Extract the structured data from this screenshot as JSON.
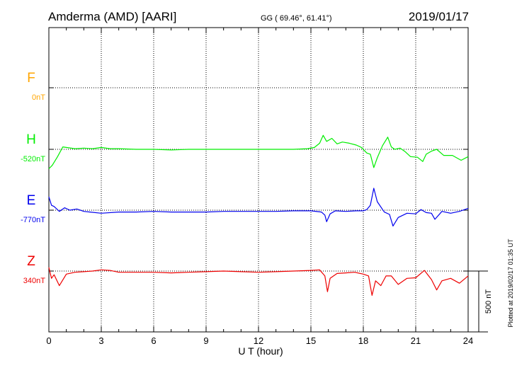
{
  "header": {
    "station": "Amderma (AMD)  [AARI]",
    "coords": "GG ( 69.46°,  61.41°)",
    "date": "2019/01/17"
  },
  "footer": {
    "plotted": "Plotted at 2019/02/17 01:35 UT"
  },
  "chart_data": {
    "type": "line",
    "title": "Amderma (AMD)  [AARI]",
    "xlabel": "U T (hour)",
    "ylabel": "",
    "xlim": [
      0,
      24
    ],
    "x_ticks": [
      0,
      3,
      6,
      9,
      12,
      15,
      18,
      21,
      24
    ],
    "x_tick_labels": [
      "0",
      "3",
      "6",
      "9",
      "12",
      "15",
      "18",
      "21",
      "24"
    ],
    "scale_bar_label": "500 nT",
    "scale_bar_nT": 500,
    "grid": true,
    "series": [
      {
        "name": "F",
        "baseline_label": "0nT",
        "color": "#ffa500",
        "x": [],
        "y": []
      },
      {
        "name": "H",
        "baseline_label": "-520nT",
        "color": "#00ee00",
        "x": [
          0,
          0.2,
          0.5,
          0.8,
          1,
          1.5,
          2,
          2.5,
          3,
          3.5,
          4,
          5,
          6,
          7,
          8,
          9,
          10,
          11,
          12,
          13,
          14,
          14.8,
          15.2,
          15.5,
          15.7,
          15.9,
          16.2,
          16.5,
          16.8,
          17.2,
          17.6,
          17.9,
          18.2,
          18.4,
          18.6,
          18.8,
          19.1,
          19.4,
          19.6,
          19.8,
          20.1,
          20.4,
          20.7,
          21.1,
          21.4,
          21.6,
          21.9,
          22.2,
          22.6,
          23.1,
          23.6,
          24
        ],
        "y": [
          -160,
          -130,
          -60,
          20,
          15,
          5,
          10,
          5,
          15,
          5,
          5,
          0,
          0,
          -5,
          0,
          0,
          0,
          0,
          0,
          0,
          0,
          5,
          15,
          50,
          115,
          65,
          90,
          45,
          60,
          50,
          35,
          15,
          -30,
          -40,
          -150,
          -70,
          30,
          100,
          20,
          0,
          10,
          -20,
          -60,
          -65,
          -100,
          -40,
          -15,
          0,
          -50,
          -50,
          -90,
          -60
        ]
      },
      {
        "name": "E",
        "baseline_label": "-770nT",
        "color": "#0000ee",
        "x": [
          0,
          0.15,
          0.3,
          0.6,
          0.9,
          1.2,
          1.6,
          2,
          3,
          4,
          5,
          6,
          7,
          8,
          9,
          10,
          11,
          12,
          13,
          14,
          15,
          15.6,
          15.8,
          15.9,
          16.1,
          16.4,
          17,
          17.6,
          18,
          18.2,
          18.4,
          18.6,
          18.8,
          19.2,
          19.5,
          19.7,
          20,
          20.5,
          21,
          21.3,
          21.6,
          21.9,
          22.1,
          22.5,
          23,
          23.5,
          24
        ],
        "y": [
          110,
          40,
          30,
          -10,
          20,
          0,
          10,
          -10,
          -25,
          -15,
          -15,
          -10,
          -15,
          -15,
          -15,
          -10,
          -10,
          -10,
          -10,
          -5,
          -5,
          -15,
          -40,
          -95,
          -30,
          -5,
          -10,
          -5,
          -5,
          5,
          40,
          180,
          70,
          -15,
          -35,
          -130,
          -60,
          -25,
          -30,
          5,
          -20,
          -25,
          -75,
          -10,
          -25,
          -10,
          15
        ]
      },
      {
        "name": "Z",
        "baseline_label": "340nT",
        "color": "#ee0000",
        "x": [
          0,
          0.15,
          0.3,
          0.6,
          1,
          1.5,
          2,
          2.5,
          3,
          3.5,
          4,
          5,
          6,
          7,
          8,
          9,
          10,
          11,
          12,
          13,
          14,
          15,
          15.5,
          15.8,
          15.95,
          16.1,
          16.5,
          17,
          17.5,
          18,
          18.3,
          18.5,
          18.7,
          19,
          19.3,
          19.6,
          20,
          20.5,
          21,
          21.5,
          21.9,
          22.2,
          22.5,
          23,
          23.5,
          24
        ],
        "y": [
          30,
          -60,
          -30,
          -120,
          -25,
          -10,
          -5,
          0,
          10,
          5,
          -10,
          -10,
          -10,
          -15,
          -10,
          -5,
          0,
          -5,
          -10,
          -5,
          0,
          5,
          10,
          -40,
          -170,
          -60,
          -20,
          -15,
          -10,
          -25,
          -40,
          -200,
          -80,
          -120,
          -40,
          -40,
          -110,
          -60,
          -55,
          5,
          -70,
          -155,
          -80,
          -60,
          -100,
          -40
        ]
      }
    ]
  }
}
